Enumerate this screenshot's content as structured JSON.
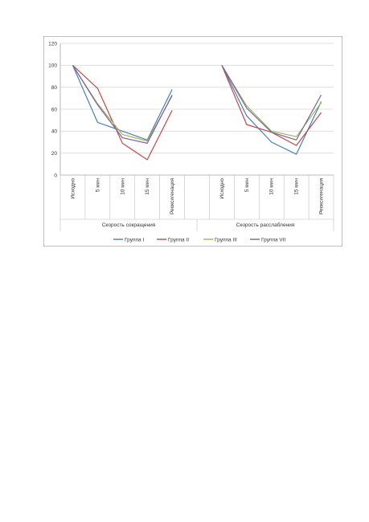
{
  "chart_data": {
    "type": "line",
    "y_ticks": [
      "0",
      "20",
      "40",
      "60",
      "80",
      "100",
      "120"
    ],
    "ylim": [
      0,
      120
    ],
    "grid": true,
    "groups": [
      {
        "label": "Скорость сокращения",
        "categories": [
          "Исходно",
          "5 мин",
          "10 мин",
          "15 мин",
          "Реоксигенация"
        ]
      },
      {
        "label": "Скорость расслабления",
        "categories": [
          "Исходно",
          "5 мин",
          "10 мин",
          "15 мин",
          "Реоксигенация"
        ]
      }
    ],
    "legend_position": "bottom",
    "series": [
      {
        "name": "Группа I",
        "color": "#4a7ebb",
        "values": [
          [
            100,
            48,
            40,
            32,
            78
          ],
          [
            100,
            54,
            30,
            19,
            67
          ]
        ]
      },
      {
        "name": "Группа II",
        "color": "#be4b48",
        "values": [
          [
            100,
            79,
            29,
            14,
            59
          ],
          [
            100,
            46,
            39,
            27,
            57
          ]
        ]
      },
      {
        "name": "Группа III",
        "color": "#98b954",
        "values": [
          [
            100,
            65,
            37,
            31,
            72
          ],
          [
            100,
            63,
            40,
            35,
            66
          ]
        ]
      },
      {
        "name": "Группа VII",
        "color": "#7d60a0",
        "values": [
          [
            100,
            64,
            34,
            29,
            73
          ],
          [
            100,
            61,
            39,
            32,
            73
          ]
        ]
      }
    ]
  }
}
